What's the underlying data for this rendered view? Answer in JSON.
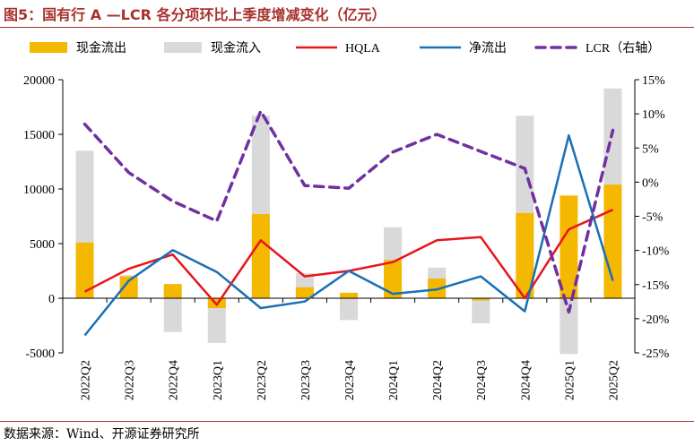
{
  "title": "图5：国有行 A —LCR 各分项环比上季度增减变化（亿元）",
  "source": "数据来源：Wind、开源证券研究所",
  "chart_data": {
    "type": "bar",
    "categories": [
      "2022Q2",
      "2022Q3",
      "2022Q4",
      "2023Q1",
      "2023Q2",
      "2023Q3",
      "2023Q4",
      "2024Q1",
      "2024Q2",
      "2024Q3",
      "2024Q4",
      "2025Q1",
      "2025Q2"
    ],
    "ylim": [
      -5000,
      20000
    ],
    "yticks": [
      -5000,
      0,
      5000,
      10000,
      15000,
      20000
    ],
    "ytick_labels": [
      "-5000",
      "0",
      "5000",
      "10000",
      "15000",
      "20000"
    ],
    "y2lim": [
      -25,
      15
    ],
    "y2ticks": [
      -25,
      -20,
      -15,
      -10,
      -5,
      0,
      5,
      10,
      15
    ],
    "y2tick_labels": [
      "-25%",
      "-20%",
      "-15%",
      "-10%",
      "-5%",
      "0%",
      "5%",
      "10%",
      "15%"
    ],
    "legend_position": "top",
    "series": [
      {
        "name": "现金流出",
        "type": "bar",
        "color": "#f5b800",
        "values": [
          5100,
          2000,
          1300,
          -900,
          7700,
          1000,
          500,
          3500,
          1800,
          -200,
          7800,
          9400,
          10400
        ]
      },
      {
        "name": "现金流入",
        "type": "bar",
        "color": "#d9d9d9",
        "values": [
          13500,
          2100,
          -3100,
          -4100,
          16700,
          2300,
          -2000,
          6500,
          2800,
          -2300,
          16700,
          -5100,
          19200
        ]
      },
      {
        "name": "HQLA",
        "type": "line",
        "color": "#e8141c",
        "values": [
          600,
          2700,
          4000,
          -600,
          5300,
          2000,
          2500,
          3300,
          5300,
          5600,
          0,
          6300,
          8100
        ]
      },
      {
        "name": "净流出",
        "type": "line",
        "color": "#1a6fb5",
        "values": [
          -3400,
          1600,
          4400,
          2400,
          -900,
          -300,
          2500,
          400,
          800,
          2000,
          -1200,
          14900,
          1600
        ]
      },
      {
        "name": "LCR（右轴）",
        "type": "line",
        "axis": "right",
        "dashed": true,
        "color": "#7030a0",
        "values": [
          8.5,
          1.4,
          -2.8,
          -5.7,
          10.4,
          -0.5,
          -0.9,
          4.4,
          7.0,
          4.5,
          2.0,
          -19.0,
          7.6
        ]
      }
    ]
  }
}
